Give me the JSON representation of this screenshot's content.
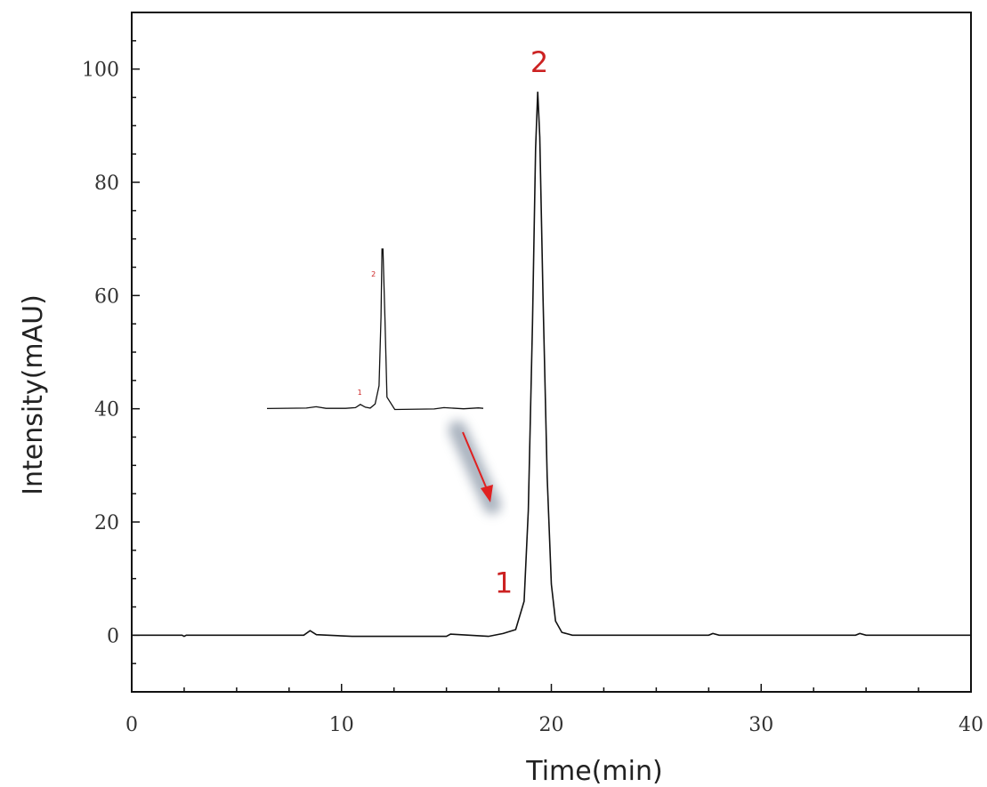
{
  "chart_data": {
    "type": "line",
    "xlabel": "Time(min)",
    "ylabel": "Intensity(mAU)",
    "xlim": [
      0,
      40
    ],
    "ylim": [
      -10,
      110
    ],
    "x_ticks": [
      "0",
      "10",
      "20",
      "30",
      "40"
    ],
    "y_ticks": [
      "0",
      "20",
      "40",
      "60",
      "80",
      "100"
    ],
    "grid": false,
    "series": [
      {
        "x": [
          0,
          2.4,
          2.5,
          2.6,
          5,
          8.2,
          8.5,
          8.8,
          10.5,
          15,
          15.2,
          17,
          17.7,
          18.3,
          18.7,
          18.9,
          19.1,
          19.25,
          19.35,
          19.45,
          19.6,
          19.8,
          20.0,
          20.2,
          20.5,
          21,
          25,
          27.5,
          27.7,
          28,
          34.5,
          34.7,
          35,
          40
        ],
        "y": [
          0,
          0,
          -0.2,
          0,
          0,
          0,
          0.8,
          0.1,
          -0.2,
          -0.2,
          0.2,
          -0.2,
          0.3,
          1,
          6,
          22,
          55,
          86,
          96,
          88,
          60,
          28,
          9,
          2.5,
          0.5,
          0,
          0,
          0,
          0.3,
          0,
          0,
          0.3,
          0,
          0
        ]
      }
    ],
    "annotations": [
      {
        "text": "1",
        "x": 17.3,
        "y": 7.5,
        "color": "#cc2222"
      },
      {
        "text": "2",
        "x": 19.0,
        "y": 99.5,
        "color": "#cc2222"
      }
    ],
    "inset": {
      "type": "line",
      "description_free": true,
      "x": [
        0,
        4,
        5,
        6,
        8,
        9,
        9.5,
        10,
        10.5,
        11,
        11.4,
        11.6,
        11.7,
        11.8,
        12.0,
        12.2,
        13,
        17,
        18,
        20,
        21.5,
        22
      ],
      "y": [
        0,
        0.2,
        0.8,
        0.1,
        0.1,
        0.4,
        1.8,
        0.6,
        0.2,
        2,
        10,
        40,
        70,
        70,
        40,
        5,
        -0.4,
        -0.2,
        0.4,
        -0.1,
        0.3,
        0.1
      ],
      "ylim": [
        -1,
        70
      ],
      "annotations": [
        {
          "text": "1",
          "x": 9.2,
          "y": 6
        },
        {
          "text": "2",
          "x": 10.6,
          "y": 58
        }
      ],
      "color": "#cc2222"
    },
    "arrow_color": "#e02020",
    "line_color": "#111111"
  }
}
